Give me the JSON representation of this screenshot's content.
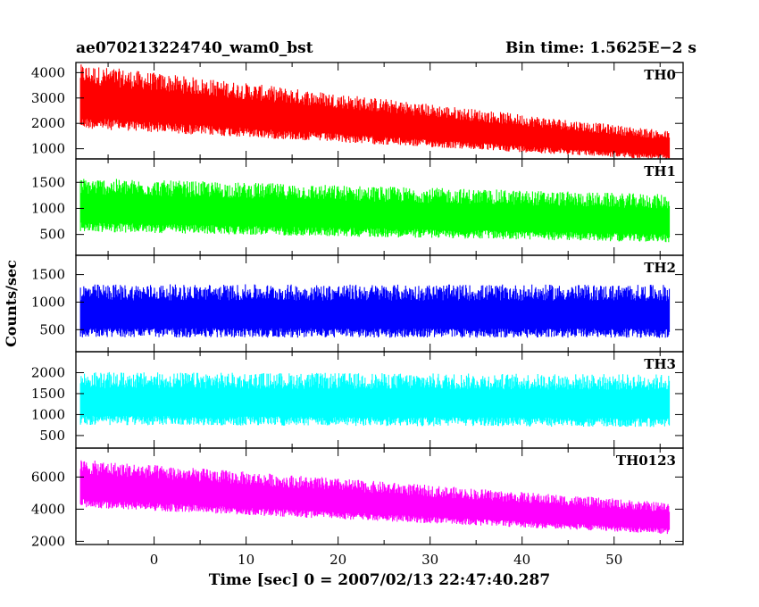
{
  "header": {
    "left": "ae070213224740_wam0_bst",
    "right": "Bin time: 1.5625E−2 s"
  },
  "chart_data": {
    "type": "line",
    "ylabel": "Counts/sec",
    "xlabel": "Time [sec] 0 = 2007/02/13 22:47:40.287",
    "x_range": [
      -8,
      56
    ],
    "xlim": [
      -8.5,
      57.5
    ],
    "x_ticks": [
      0,
      10,
      20,
      30,
      40,
      50
    ],
    "panels": [
      {
        "name": "TH0",
        "color": "#ff0000",
        "ylim": [
          600,
          4400
        ],
        "yticks": [
          1000,
          2000,
          3000,
          4000
        ],
        "trend_start": 2900,
        "trend_end": 1050,
        "spread_start": 1100,
        "spread_end": 500
      },
      {
        "name": "TH1",
        "color": "#00ff00",
        "ylim": [
          100,
          1950
        ],
        "yticks": [
          500,
          1000,
          1500
        ],
        "trend_start": 1000,
        "trend_end": 750,
        "spread_start": 450,
        "spread_end": 400
      },
      {
        "name": "TH2",
        "color": "#0000ff",
        "ylim": [
          100,
          1850
        ],
        "yticks": [
          500,
          1000,
          1500
        ],
        "trend_start": 780,
        "trend_end": 770,
        "spread_start": 420,
        "spread_end": 420
      },
      {
        "name": "TH3",
        "color": "#00ffff",
        "ylim": [
          200,
          2500
        ],
        "yticks": [
          500,
          1000,
          1500,
          2000
        ],
        "trend_start": 1300,
        "trend_end": 1250,
        "spread_start": 550,
        "spread_end": 550
      },
      {
        "name": "TH0123",
        "color": "#ff00ff",
        "ylim": [
          1800,
          7800
        ],
        "yticks": [
          2000,
          4000,
          6000
        ],
        "trend_start": 5400,
        "trend_end": 3300,
        "spread_start": 1300,
        "spread_end": 850
      }
    ]
  }
}
